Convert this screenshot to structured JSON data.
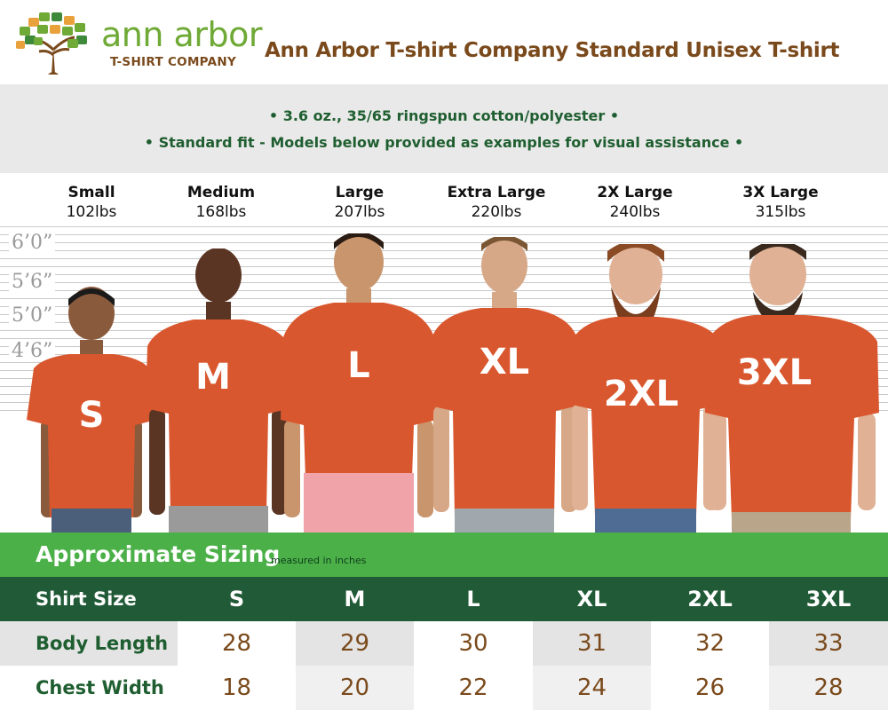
{
  "header": {
    "logo_line1": "ann arbor",
    "logo_line2": "T-SHIRT COMPANY",
    "title": "Ann Arbor T-shirt Company Standard Unisex T-shirt"
  },
  "specs": {
    "line1": "• 3.6 oz., 35/65 ringspun cotton/polyester •",
    "line2": "• Standard fit - Models below provided as examples for visual assistance •"
  },
  "height_marks": [
    "6’0”",
    "5’6”",
    "5’0”",
    "4’6”"
  ],
  "models": [
    {
      "size_name": "Small",
      "weight": "102lbs",
      "shirt_label": "S"
    },
    {
      "size_name": "Medium",
      "weight": "168lbs",
      "shirt_label": "M"
    },
    {
      "size_name": "Large",
      "weight": "207lbs",
      "shirt_label": "L"
    },
    {
      "size_name": "Extra Large",
      "weight": "220lbs",
      "shirt_label": "XL"
    },
    {
      "size_name": "2X Large",
      "weight": "240lbs",
      "shirt_label": "2XL"
    },
    {
      "size_name": "3X Large",
      "weight": "315lbs",
      "shirt_label": "3XL"
    }
  ],
  "sizing": {
    "title": "Approximate Sizing",
    "note": "measured in inches"
  },
  "table": {
    "header_label": "Shirt Size",
    "sizes": [
      "S",
      "M",
      "L",
      "XL",
      "2XL",
      "3XL"
    ],
    "rows": [
      {
        "label": "Body Length",
        "values": [
          "28",
          "29",
          "30",
          "31",
          "32",
          "33"
        ]
      },
      {
        "label": "Chest Width",
        "values": [
          "18",
          "20",
          "22",
          "24",
          "26",
          "28"
        ]
      }
    ]
  },
  "colors": {
    "shirt": "#d9572e",
    "brand_brown": "#7a4a1c",
    "brand_green": "#4bb048",
    "dark_green": "#205a36"
  }
}
